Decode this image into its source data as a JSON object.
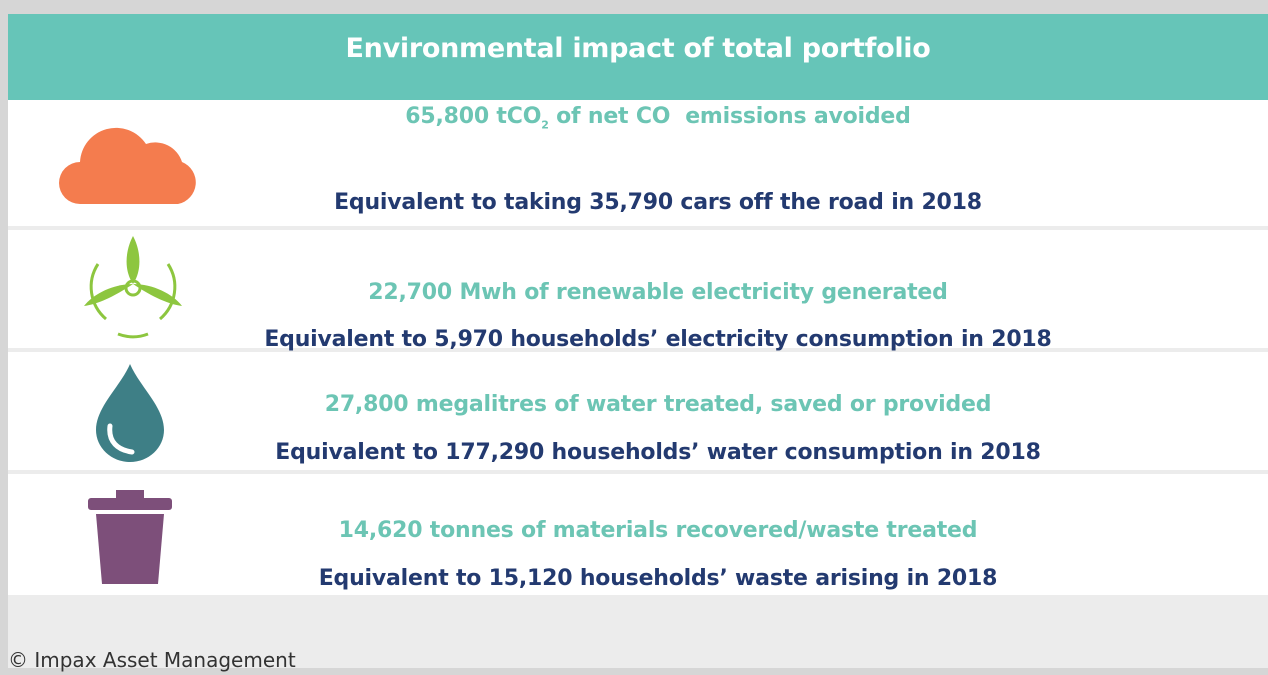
{
  "header": {
    "title": "Environmental impact of total portfolio"
  },
  "rows": [
    {
      "headline": {
        "before": "65,800 tCO",
        "sub": "2",
        "after": " of net CO  emissions avoided"
      },
      "equivalent": "Equivalent to taking 35,790 cars off the road in 2018"
    },
    {
      "headline": {
        "before": "22,700 Mwh of renewable electricity generated"
      },
      "equivalent": "Equivalent to 5,970 households’ electricity consumption in 2018"
    },
    {
      "headline": {
        "before": "27,800 megalitres of water treated, saved or provided"
      },
      "equivalent": "Equivalent to 177,290 households’ water consumption in 2018"
    },
    {
      "headline": {
        "before": "14,620 tonnes of materials recovered/waste treated"
      },
      "equivalent": "Equivalent to 15,120 households’ waste arising in 2018"
    }
  ],
  "footer": "© Impax Asset Management"
}
